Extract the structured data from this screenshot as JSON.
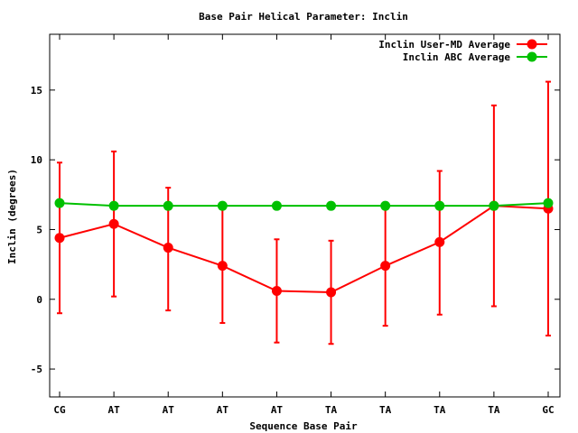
{
  "chart_data": {
    "type": "line",
    "title": "Base Pair Helical Parameter: Inclin",
    "xlabel": "Sequence Base Pair",
    "ylabel": "Inclin (degrees)",
    "categories": [
      "CG",
      "AT",
      "AT",
      "AT",
      "AT",
      "TA",
      "TA",
      "TA",
      "TA",
      "GC"
    ],
    "ylim": [
      -7,
      19
    ],
    "yticks": [
      -5,
      0,
      5,
      10,
      15
    ],
    "grid": false,
    "legend_position": "top-right",
    "series": [
      {
        "name": "Inclin User-MD Average",
        "color": "#ff0000",
        "values": [
          4.4,
          5.4,
          3.7,
          2.4,
          0.6,
          0.5,
          2.4,
          4.1,
          6.7,
          6.5
        ],
        "error_low": [
          -1.0,
          0.2,
          -0.8,
          -1.7,
          -3.1,
          -3.2,
          -1.9,
          -1.1,
          -0.5,
          -2.6
        ],
        "error_high": [
          9.8,
          10.6,
          8.0,
          6.7,
          4.3,
          4.2,
          6.7,
          9.2,
          13.9,
          15.6
        ]
      },
      {
        "name": "Inclin ABC Average",
        "color": "#00c000",
        "values": [
          6.9,
          6.7,
          6.7,
          6.7,
          6.7,
          6.7,
          6.7,
          6.7,
          6.7,
          6.9
        ]
      }
    ]
  }
}
